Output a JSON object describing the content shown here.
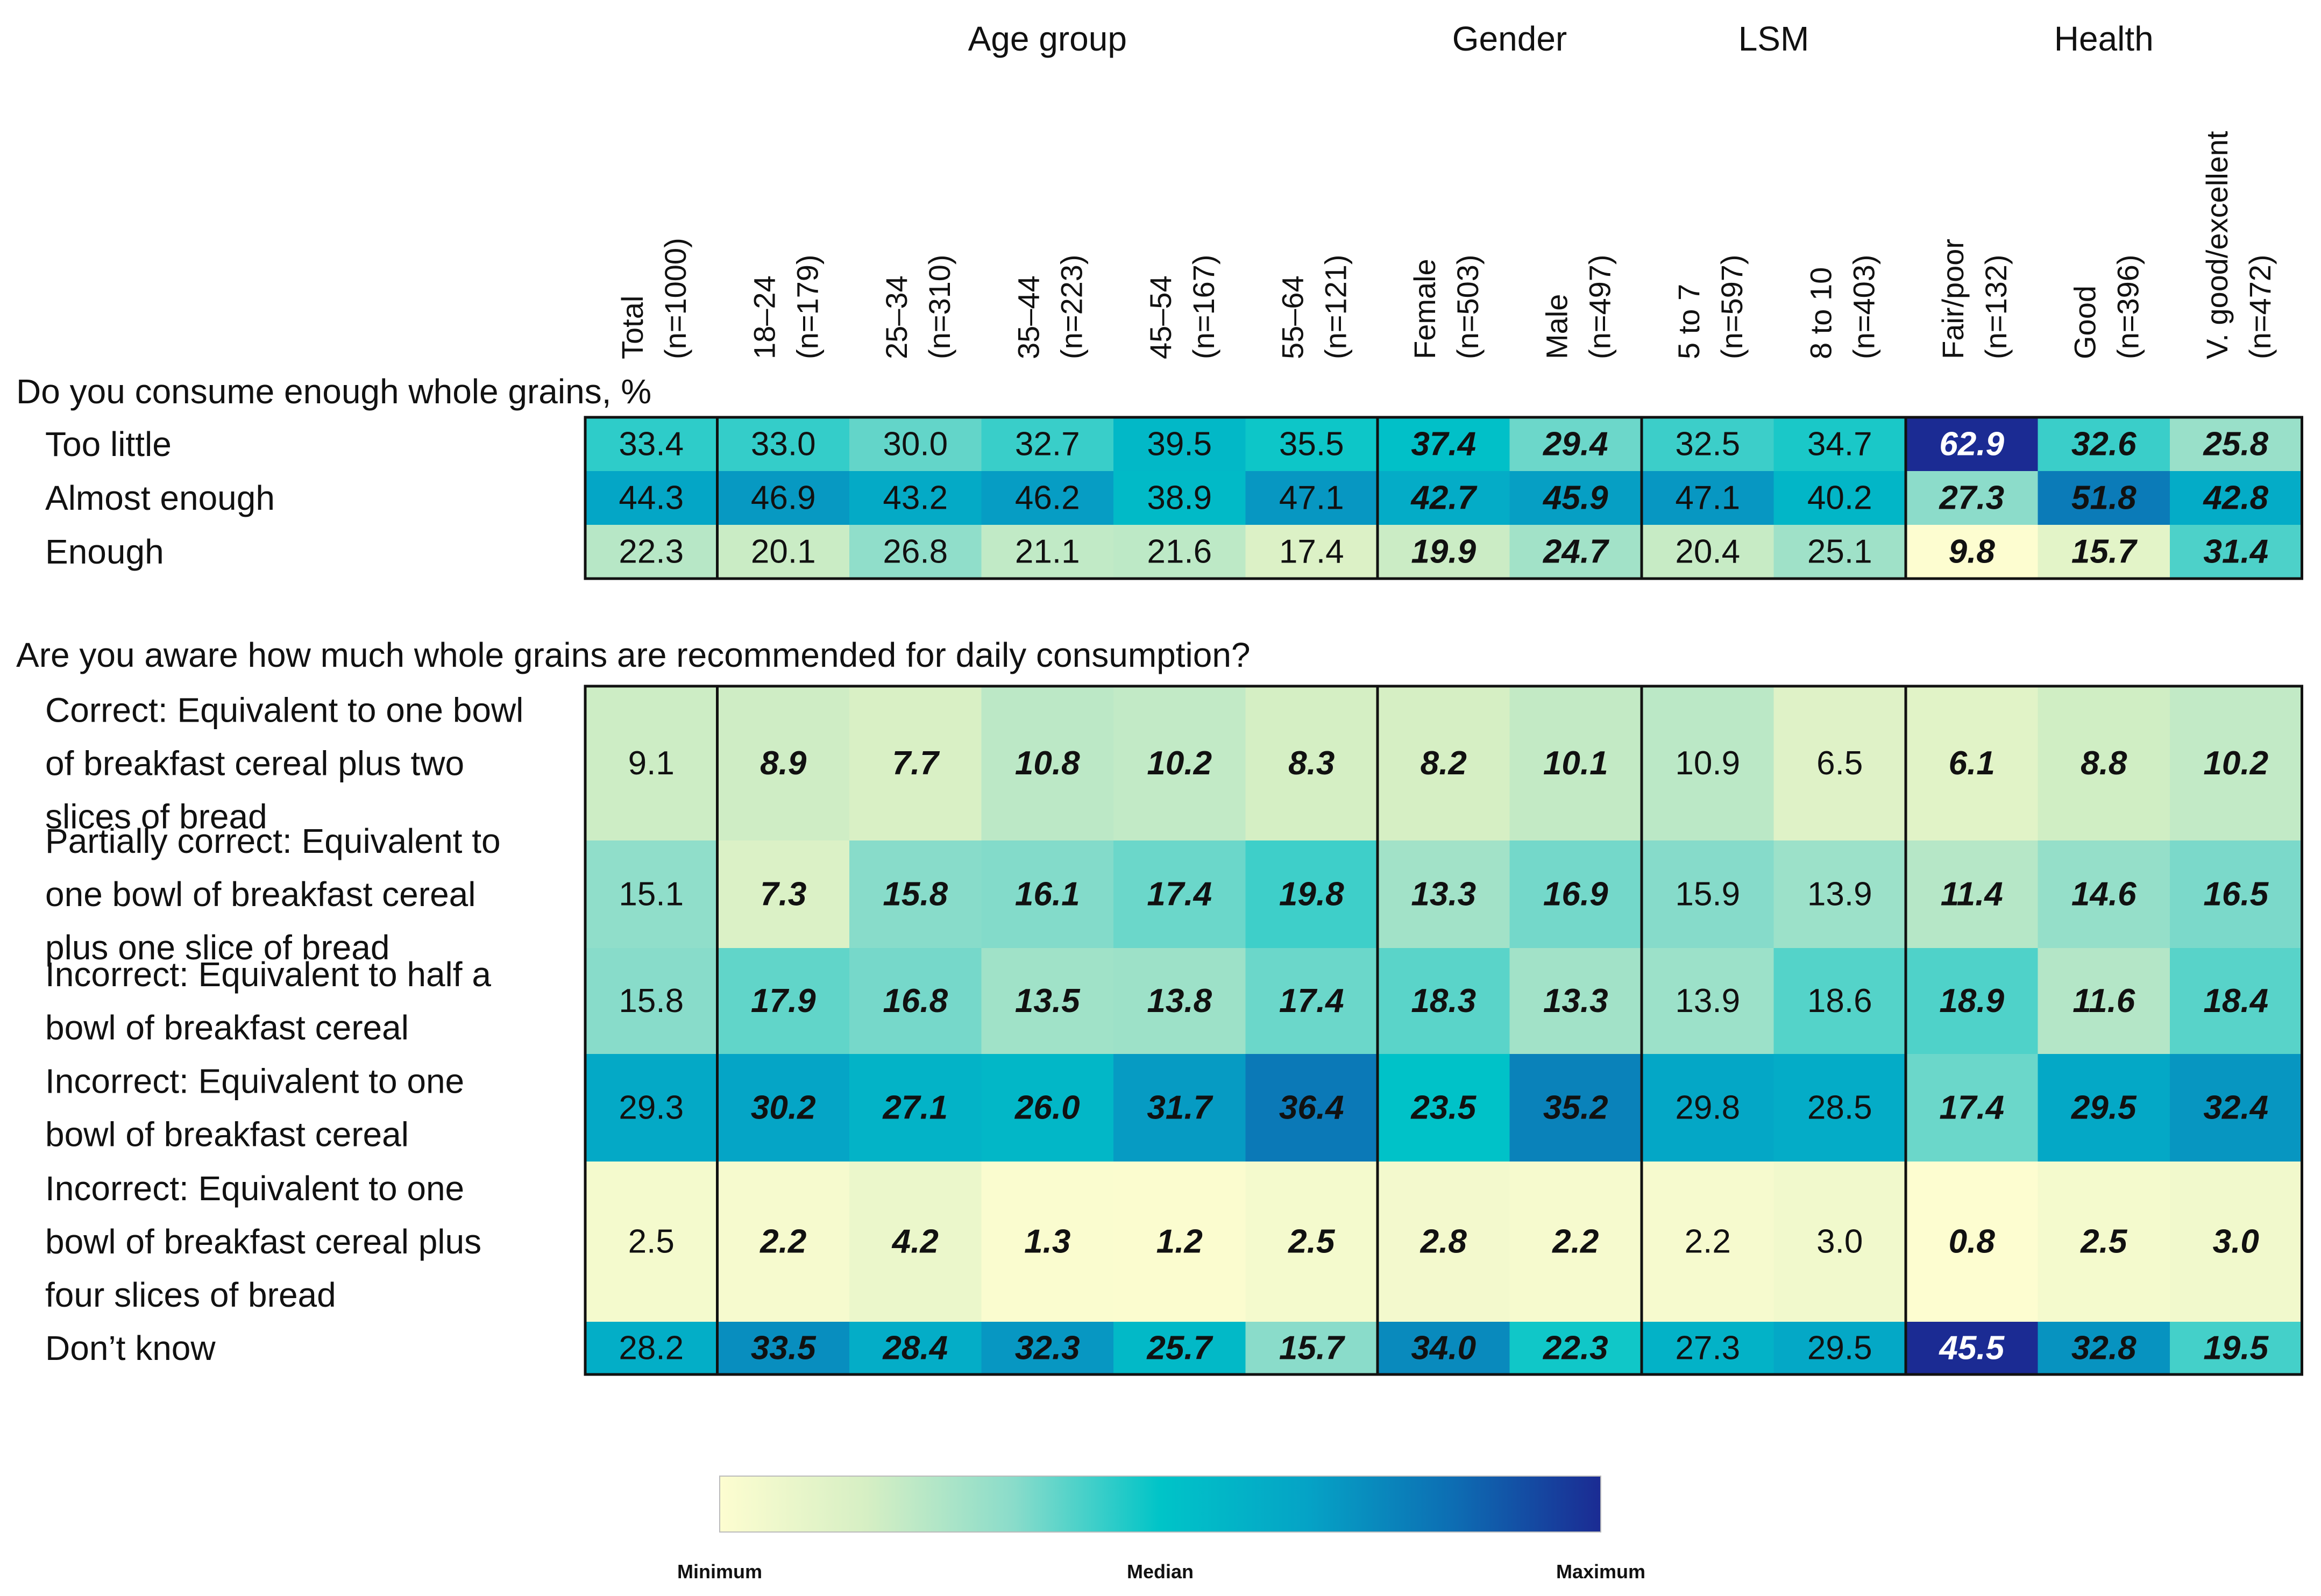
{
  "chart_data": {
    "type": "heatmap",
    "column_groups": [
      {
        "label": "Age group",
        "from": 1,
        "to": 5
      },
      {
        "label": "Gender",
        "from": 6,
        "to": 7
      },
      {
        "label": "LSM",
        "from": 8,
        "to": 9
      },
      {
        "label": "Health",
        "from": 10,
        "to": 12
      }
    ],
    "columns": [
      {
        "name": "Total",
        "n": "(n=1000)"
      },
      {
        "name": "18–24",
        "n": "(n=179)"
      },
      {
        "name": "25–34",
        "n": "(n=310)"
      },
      {
        "name": "35–44",
        "n": "(n=223)"
      },
      {
        "name": "45–54",
        "n": "(n=167)"
      },
      {
        "name": "55–64",
        "n": "(n=121)"
      },
      {
        "name": "Female",
        "n": "(n=503)"
      },
      {
        "name": "Male",
        "n": "(n=497)"
      },
      {
        "name": "5 to 7",
        "n": "(n=597)"
      },
      {
        "name": "8 to 10",
        "n": "(n=403)"
      },
      {
        "name": "Fair/poor",
        "n": "(n=132)"
      },
      {
        "name": "Good",
        "n": "(n=396)"
      },
      {
        "name": "V. good/excellent",
        "n": "(n=472)"
      }
    ],
    "sections": [
      {
        "title": "Do you consume enough whole grains, %",
        "rows": [
          {
            "label_lines": [
              "Too little"
            ],
            "values": [
              33.4,
              33.0,
              30.0,
              32.7,
              39.5,
              35.5,
              37.4,
              29.4,
              32.5,
              34.7,
              62.9,
              32.6,
              25.8
            ]
          },
          {
            "label_lines": [
              "Almost enough"
            ],
            "values": [
              44.3,
              46.9,
              43.2,
              46.2,
              38.9,
              47.1,
              42.7,
              45.9,
              47.1,
              40.2,
              27.3,
              51.8,
              42.8
            ]
          },
          {
            "label_lines": [
              "Enough"
            ],
            "values": [
              22.3,
              20.1,
              26.8,
              21.1,
              21.6,
              17.4,
              19.9,
              24.7,
              20.4,
              25.1,
              9.8,
              15.7,
              31.4
            ]
          }
        ],
        "significant_columns": [
          6,
          7,
          10,
          11,
          12
        ]
      },
      {
        "title": "Are you aware how much whole grains are recommended for daily consumption?",
        "rows": [
          {
            "label_lines": [
              "Correct: Equivalent to one bowl",
              "of breakfast cereal plus two",
              "slices of bread"
            ],
            "values": [
              9.1,
              8.9,
              7.7,
              10.8,
              10.2,
              8.3,
              8.2,
              10.1,
              10.9,
              6.5,
              6.1,
              8.8,
              10.2
            ]
          },
          {
            "label_lines": [
              "Partially correct: Equivalent to",
              "one bowl of breakfast cereal",
              "plus one slice of bread"
            ],
            "values": [
              15.1,
              7.3,
              15.8,
              16.1,
              17.4,
              19.8,
              13.3,
              16.9,
              15.9,
              13.9,
              11.4,
              14.6,
              16.5
            ]
          },
          {
            "label_lines": [
              "Incorrect: Equivalent to half a",
              "bowl of breakfast cereal"
            ],
            "values": [
              15.8,
              17.9,
              16.8,
              13.5,
              13.8,
              17.4,
              18.3,
              13.3,
              13.9,
              18.6,
              18.9,
              11.6,
              18.4
            ]
          },
          {
            "label_lines": [
              "Incorrect: Equivalent to one",
              "bowl of breakfast cereal"
            ],
            "values": [
              29.3,
              30.2,
              27.1,
              26.0,
              31.7,
              36.4,
              23.5,
              35.2,
              29.8,
              28.5,
              17.4,
              29.5,
              32.4
            ]
          },
          {
            "label_lines": [
              "Incorrect: Equivalent to one",
              "bowl of breakfast cereal plus",
              "four slices of bread"
            ],
            "values": [
              2.5,
              2.2,
              4.2,
              1.3,
              1.2,
              2.5,
              2.8,
              2.2,
              2.2,
              3.0,
              0.8,
              2.5,
              3.0
            ]
          },
          {
            "label_lines": [
              "Don’t know"
            ],
            "values": [
              28.2,
              33.5,
              28.4,
              32.3,
              25.7,
              15.7,
              34.0,
              22.3,
              27.3,
              29.5,
              45.5,
              32.8,
              19.5
            ]
          }
        ],
        "significant_columns": [
          1,
          2,
          3,
          4,
          5,
          6,
          7,
          10,
          11,
          12
        ]
      }
    ],
    "legend": {
      "min_label": "Minimum",
      "median_label": "Median",
      "max_label": "Maximum",
      "colors": [
        "#fdfdd0",
        "#d6efc4",
        "#8adcca",
        "#00c4c8",
        "#05a3c6",
        "#0d6db3",
        "#1b2b93"
      ]
    }
  }
}
